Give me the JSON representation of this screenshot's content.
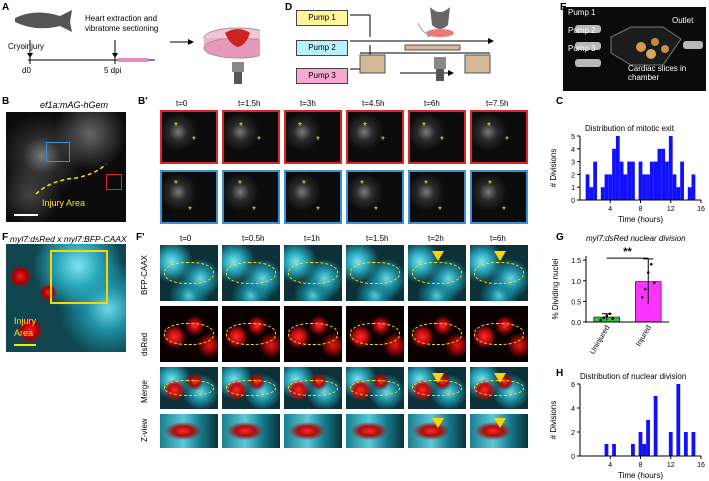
{
  "panels": {
    "A": {
      "letter": "A",
      "cryo": "Cryoinjury",
      "heart": "Heart extraction and vibratome sectioning",
      "d0": "d0",
      "dpi": "5 dpi"
    },
    "B": {
      "letter": "B",
      "title": "ef1a:mAG-hGem",
      "injury": "Injury Area"
    },
    "Bp": {
      "letter": "B'",
      "times": [
        "t=0",
        "t=1.5h",
        "t=3h",
        "t=4.5h",
        "t=6h",
        "t=7.5h"
      ]
    },
    "C": {
      "letter": "C"
    },
    "D": {
      "letter": "D",
      "pumps": [
        "Pump 1",
        "Pump 2",
        "Pump 3"
      ]
    },
    "E": {
      "letter": "E",
      "pumps": [
        "Pump 1",
        "Pump 2",
        "Pump 3"
      ],
      "outlet": "Outlet",
      "slices": "Cardiac slices in chamber"
    },
    "F": {
      "letter": "F",
      "title": "myl7:dsRed x myl7:BFP-CAAX",
      "injury1": "Injury",
      "injury2": "Area"
    },
    "Fp": {
      "letter": "F'",
      "times": [
        "t=0",
        "t=0.5h",
        "t=1h",
        "t=1.5h",
        "t=2h",
        "t=6h"
      ],
      "rows": [
        "BFP-CAAX",
        "dsRed",
        "Merge",
        "Z-view"
      ]
    },
    "G": {
      "letter": "G"
    },
    "H": {
      "letter": "H"
    }
  },
  "colors": {
    "pump1": "#fff59b",
    "pump2": "#b7f0f7",
    "pump3": "#f7a8cf",
    "bar_blue": "#1010ff",
    "g_uninjured": "#2fc92f",
    "g_injured": "#ff33ff",
    "yellow": "#ffe400"
  },
  "chart_data": [
    {
      "id": "C",
      "type": "bar",
      "title": "Distribution of mitotic exit",
      "xlabel": "Time (hours)",
      "ylabel": "# Divisions",
      "xlim": [
        0,
        16
      ],
      "ylim": [
        0,
        5
      ],
      "xticks": [
        "4",
        "8",
        "12",
        "16"
      ],
      "yticks": [
        "0",
        "1",
        "2",
        "3",
        "4",
        "5"
      ],
      "x": [
        1,
        1.5,
        2,
        2.5,
        3,
        3.5,
        4,
        4.5,
        5,
        5.5,
        6,
        6.5,
        7,
        7.5,
        8,
        8.5,
        9,
        9.5,
        10,
        10.5,
        11,
        11.5,
        12,
        12.5,
        13,
        13.5,
        14,
        14.5,
        15
      ],
      "values": [
        2,
        1,
        3,
        0,
        1,
        2,
        2,
        4,
        5,
        3,
        2,
        3,
        3,
        0,
        3,
        2,
        2,
        3,
        3,
        4,
        4,
        3,
        5,
        2,
        1,
        3,
        0,
        1,
        2
      ]
    },
    {
      "id": "G",
      "type": "bar",
      "title": "myl7:dsRed nuclear division",
      "ylabel": "% Dividing nuclei",
      "categories": [
        "Uninjured",
        "Injured"
      ],
      "values": [
        0.12,
        0.98
      ],
      "errors": [
        0.08,
        0.55
      ],
      "ylim": [
        0,
        1.6
      ],
      "yticks": [
        "0.0",
        "0.5",
        "1.0",
        "1.5"
      ],
      "significance": "**"
    },
    {
      "id": "H",
      "type": "bar",
      "title": "Distribution of nuclear division",
      "xlabel": "Time (hours)",
      "ylabel": "# Divisions",
      "xlim": [
        0,
        16
      ],
      "ylim": [
        0,
        6
      ],
      "xticks": [
        "4",
        "8",
        "12",
        "16"
      ],
      "yticks": [
        "0",
        "2",
        "4",
        "6"
      ],
      "x": [
        3.5,
        4.5,
        6,
        7,
        8,
        8.5,
        9,
        10,
        11,
        12,
        13,
        14,
        15
      ],
      "values": [
        1,
        1,
        0,
        1,
        2,
        1,
        3,
        5,
        0,
        2,
        6,
        2,
        2
      ]
    }
  ]
}
